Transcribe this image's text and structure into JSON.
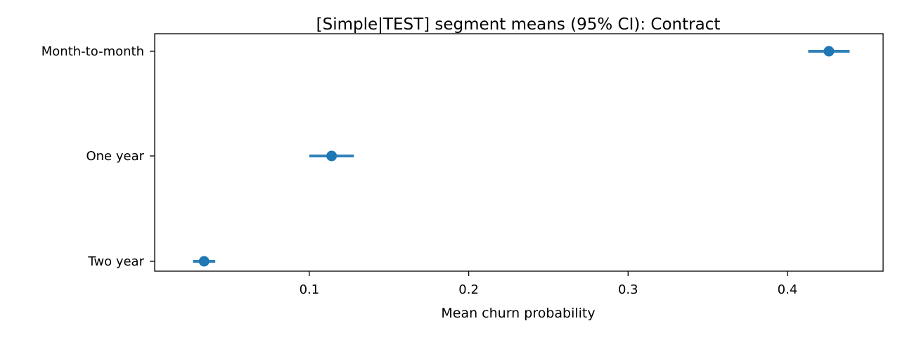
{
  "chart_data": {
    "type": "errorbar",
    "title": "[Simple|TEST] segment means (95% CI): Contract",
    "xlabel": "Mean churn probability",
    "ylabel": "",
    "categories": [
      "Month-to-month",
      "One year",
      "Two year"
    ],
    "x_ticks": [
      0.1,
      0.2,
      0.3,
      0.4
    ],
    "x_tick_labels": [
      "0.1",
      "0.2",
      "0.3",
      "0.4"
    ],
    "xlim": [
      0.003,
      0.46
    ],
    "grid": false,
    "series": [
      {
        "points": [
          {
            "category": "Month-to-month",
            "mean": 0.426,
            "ci_low": 0.413,
            "ci_high": 0.439
          },
          {
            "category": "One year",
            "mean": 0.114,
            "ci_low": 0.1,
            "ci_high": 0.128
          },
          {
            "category": "Two year",
            "mean": 0.034,
            "ci_low": 0.027,
            "ci_high": 0.041
          }
        ]
      }
    ],
    "colors": {
      "marker": "#1f77b4",
      "ci_line": "#1f77b4",
      "axis": "#000000"
    }
  }
}
